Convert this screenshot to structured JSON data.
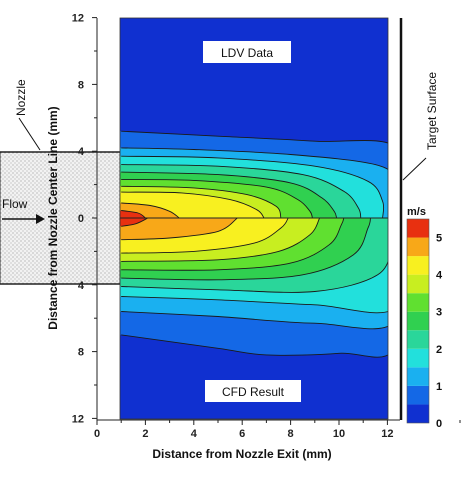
{
  "chart_data": {
    "type": "heatmap",
    "title": "",
    "xlabel": "Distance from Nozzle Exit (mm)",
    "ylabel": "Distance from Nozzle Center Line (mm)",
    "xlim": [
      0,
      12.5
    ],
    "ylim": [
      -12,
      12
    ],
    "x_ticks": [
      "0",
      "2",
      "4",
      "6",
      "8",
      "10",
      "12"
    ],
    "y_ticks": [
      "12",
      "8",
      "4",
      "0",
      "4",
      "8",
      "12"
    ],
    "y_tick_values": [
      12,
      8,
      4,
      0,
      -4,
      -8,
      -12
    ],
    "colorbar": {
      "unit": "m/s",
      "ticks": [
        "0",
        "1",
        "2",
        "3",
        "4",
        "5"
      ],
      "range": [
        0,
        5.5
      ],
      "levels": [
        {
          "from": 0.0,
          "to": 0.5,
          "color": "#1030d0"
        },
        {
          "from": 0.5,
          "to": 1.0,
          "color": "#1468e6"
        },
        {
          "from": 1.0,
          "to": 1.5,
          "color": "#1ab0f0"
        },
        {
          "from": 1.5,
          "to": 2.0,
          "color": "#22e0dc"
        },
        {
          "from": 2.0,
          "to": 2.5,
          "color": "#2ad69a"
        },
        {
          "from": 2.5,
          "to": 3.0,
          "color": "#30d050"
        },
        {
          "from": 3.0,
          "to": 3.5,
          "color": "#60e030"
        },
        {
          "from": 3.5,
          "to": 4.0,
          "color": "#c8ee20"
        },
        {
          "from": 4.0,
          "to": 4.5,
          "color": "#f8f020"
        },
        {
          "from": 4.5,
          "to": 5.0,
          "color": "#f8a818"
        },
        {
          "from": 5.0,
          "to": 5.5,
          "color": "#e83010"
        }
      ]
    },
    "regions": [
      {
        "name": "LDV Data",
        "y_range": [
          0,
          12
        ]
      },
      {
        "name": "CFD Result",
        "y_range": [
          -12,
          0
        ]
      }
    ],
    "contours_upper": [
      {
        "level": 0.5,
        "color": "#1468e6",
        "pts": [
          [
            1,
            5.2
          ],
          [
            5,
            4.9
          ],
          [
            9,
            4.6
          ],
          [
            12.4,
            4.2
          ]
        ],
        "tip": 12.4
      },
      {
        "level": 1.0,
        "color": "#1ab0f0",
        "pts": [
          [
            1,
            4.2
          ],
          [
            4,
            4.1
          ],
          [
            8,
            3.8
          ],
          [
            11.5,
            3.2
          ],
          [
            12.3,
            2.2
          ]
        ],
        "tip": 12.3
      },
      {
        "level": 1.5,
        "color": "#22e0dc",
        "pts": [
          [
            1,
            3.7
          ],
          [
            5,
            3.6
          ],
          [
            9,
            3.1
          ],
          [
            11.2,
            2.2
          ],
          [
            11.8,
            1.0
          ]
        ],
        "tip": 11.8
      },
      {
        "level": 2.0,
        "color": "#2ad69a",
        "pts": [
          [
            1,
            3.2
          ],
          [
            5,
            3.1
          ],
          [
            8.5,
            2.6
          ],
          [
            10.2,
            1.6
          ],
          [
            10.8,
            0.6
          ]
        ],
        "tip": 10.9
      },
      {
        "level": 2.5,
        "color": "#30d050",
        "pts": [
          [
            1,
            2.75
          ],
          [
            5,
            2.6
          ],
          [
            8,
            2.1
          ],
          [
            9.3,
            1.2
          ],
          [
            9.8,
            0.4
          ]
        ],
        "tip": 9.9
      },
      {
        "level": 3.0,
        "color": "#60e030",
        "pts": [
          [
            1,
            2.3
          ],
          [
            4,
            2.25
          ],
          [
            7,
            1.85
          ],
          [
            8.3,
            1.1
          ],
          [
            8.8,
            0.4
          ]
        ],
        "tip": 8.9
      },
      {
        "level": 3.5,
        "color": "#c8ee20",
        "pts": [
          [
            1,
            1.9
          ],
          [
            4,
            1.8
          ],
          [
            6.2,
            1.4
          ],
          [
            7.4,
            0.7
          ]
        ],
        "tip": 7.6
      },
      {
        "level": 4.0,
        "color": "#f8f020",
        "pts": [
          [
            1,
            1.55
          ],
          [
            3.5,
            1.5
          ],
          [
            5.5,
            1.1
          ],
          [
            6.6,
            0.5
          ]
        ],
        "tip": 6.9
      },
      {
        "level": 4.5,
        "color": "#f8a818",
        "pts": [
          [
            1,
            0.9
          ],
          [
            2.2,
            0.75
          ],
          [
            3.0,
            0.4
          ]
        ],
        "tip": 3.4
      },
      {
        "level": 5.0,
        "color": "#e83010",
        "pts": [
          [
            1,
            0.45
          ],
          [
            1.7,
            0.3
          ]
        ],
        "tip": 2.0
      }
    ],
    "contours_lower": [
      {
        "level": 0.5,
        "color": "#1468e6",
        "pts": [
          [
            1,
            -7.0
          ],
          [
            5,
            -7.8
          ],
          [
            7,
            -8.2
          ],
          [
            10,
            -8.1
          ],
          [
            12.4,
            -7.6
          ]
        ],
        "tip": 12.4
      },
      {
        "level": 1.0,
        "color": "#1ab0f0",
        "pts": [
          [
            1,
            -5.6
          ],
          [
            5,
            -5.9
          ],
          [
            9,
            -6.3
          ],
          [
            12.4,
            -6.1
          ]
        ],
        "tip": 12.4
      },
      {
        "level": 1.5,
        "color": "#22e0dc",
        "pts": [
          [
            1,
            -4.7
          ],
          [
            5,
            -4.9
          ],
          [
            9,
            -5.2
          ],
          [
            12.4,
            -5.3
          ]
        ],
        "tip": 12.4
      },
      {
        "level": 2.0,
        "color": "#2ad69a",
        "pts": [
          [
            1,
            -4.1
          ],
          [
            5,
            -4.3
          ],
          [
            9,
            -4.4
          ],
          [
            11.6,
            -3.4
          ],
          [
            12.2,
            -1.5
          ]
        ],
        "tip": 12.3
      },
      {
        "level": 2.5,
        "color": "#30d050",
        "pts": [
          [
            1,
            -3.6
          ],
          [
            5,
            -3.7
          ],
          [
            8.5,
            -3.4
          ],
          [
            10.6,
            -2.2
          ],
          [
            11.2,
            -0.6
          ]
        ],
        "tip": 11.3
      },
      {
        "level": 3.0,
        "color": "#60e030",
        "pts": [
          [
            1,
            -3.1
          ],
          [
            5,
            -3.1
          ],
          [
            8,
            -2.7
          ],
          [
            9.6,
            -1.6
          ],
          [
            10.1,
            -0.4
          ]
        ],
        "tip": 10.2
      },
      {
        "level": 3.5,
        "color": "#c8ee20",
        "pts": [
          [
            1,
            -2.6
          ],
          [
            5,
            -2.5
          ],
          [
            7.5,
            -2.0
          ],
          [
            8.8,
            -1.0
          ]
        ],
        "tip": 9.2
      },
      {
        "level": 4.0,
        "color": "#f8f020",
        "pts": [
          [
            1,
            -2.1
          ],
          [
            4,
            -2.0
          ],
          [
            6.5,
            -1.5
          ],
          [
            7.6,
            -0.6
          ]
        ],
        "tip": 7.9
      },
      {
        "level": 4.5,
        "color": "#f8a818",
        "pts": [
          [
            1,
            -1.3
          ],
          [
            3,
            -1.2
          ],
          [
            5,
            -0.8
          ]
        ],
        "tip": 5.8
      },
      {
        "level": 5.0,
        "color": "#e83010",
        "pts": [
          [
            1,
            -0.5
          ],
          [
            1.6,
            -0.35
          ]
        ],
        "tip": 2.1
      }
    ]
  },
  "labels": {
    "ldv": "LDV Data",
    "cfd": "CFD Result",
    "nozzle": "Nozzle",
    "flow": "Flow",
    "target_surface": "Target Surface",
    "colorbar_unit": "m/s"
  }
}
